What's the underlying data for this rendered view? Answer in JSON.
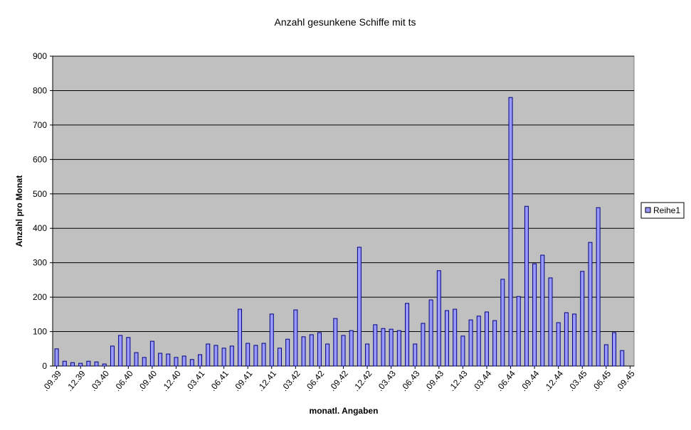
{
  "chart_data": {
    "type": "bar",
    "title": "Anzahl gesunkene Schiffe mit ts",
    "x_label": "monatl. Angaben",
    "y_label": "Anzahl pro Monat",
    "categories": [
      ".09.39",
      null,
      null,
      ".12.39",
      null,
      null,
      ".03.40",
      null,
      null,
      ".06.40",
      null,
      null,
      ".09.40",
      null,
      null,
      ".12.40",
      null,
      null,
      ".03.41",
      null,
      null,
      ".06.41",
      null,
      null,
      ".09.41",
      null,
      null,
      ".12.41",
      null,
      null,
      ".03.42",
      null,
      null,
      ".06.42",
      null,
      null,
      ".09.42",
      null,
      null,
      ".12.42",
      null,
      null,
      ".03.43",
      null,
      null,
      ".06.43",
      null,
      null,
      ".09.43",
      null,
      null,
      ".12.43",
      null,
      null,
      ".03.44",
      null,
      null,
      ".06.44",
      null,
      null,
      ".09.44",
      null,
      null,
      ".12.44",
      null,
      null,
      ".03.45",
      null,
      null,
      ".06.45",
      null,
      null,
      ".09.45"
    ],
    "series": [
      {
        "name": "Reihe1",
        "color": "#9999ff",
        "values": [
          50,
          14,
          10,
          8,
          14,
          12,
          6,
          58,
          89,
          83,
          39,
          25,
          72,
          37,
          35,
          25,
          29,
          19,
          33,
          64,
          60,
          52,
          58,
          165,
          66,
          60,
          66,
          151,
          52,
          78,
          163,
          85,
          91,
          97,
          64,
          138,
          89,
          103,
          345,
          64,
          120,
          109,
          107,
          103,
          182,
          64,
          124,
          192,
          277,
          161,
          165,
          87,
          134,
          145,
          157,
          132,
          252,
          780,
          202,
          464,
          297,
          322,
          256,
          126,
          155,
          151,
          275,
          359,
          460,
          62,
          97,
          45,
          null
        ]
      }
    ],
    "ylim": [
      0,
      900
    ],
    "yticks": [
      0,
      100,
      200,
      300,
      400,
      500,
      600,
      700,
      800,
      900
    ],
    "grid": true,
    "legend": "right"
  }
}
